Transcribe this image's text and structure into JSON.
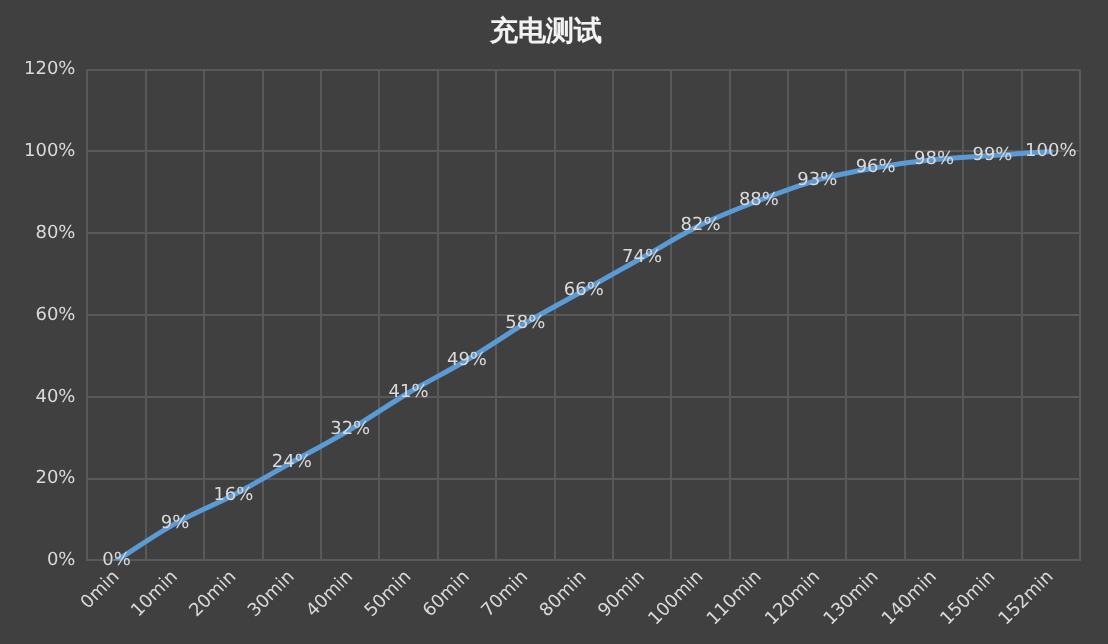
{
  "chart_data": {
    "type": "line",
    "title": "充电测试",
    "categories": [
      "0min",
      "10min",
      "20min",
      "30min",
      "40min",
      "50min",
      "60min",
      "70min",
      "80min",
      "90min",
      "100min",
      "110min",
      "120min",
      "130min",
      "140min",
      "150min",
      "152min"
    ],
    "series": [
      {
        "color": "#5b9bd5",
        "values": [
          0,
          9,
          16,
          24,
          32,
          41,
          49,
          58,
          66,
          74,
          82,
          88,
          93,
          96,
          98,
          99,
          100
        ],
        "value_labels": [
          "0%",
          "9%",
          "16%",
          "24%",
          "32%",
          "41%",
          "49%",
          "58%",
          "66%",
          "74%",
          "82%",
          "88%",
          "93%",
          "96%",
          "98%",
          "99%",
          "100%"
        ]
      }
    ],
    "ylim": [
      0,
      120
    ],
    "yticks": [
      {
        "value": 0,
        "label": "0%"
      },
      {
        "value": 20,
        "label": "20%"
      },
      {
        "value": 40,
        "label": "40%"
      },
      {
        "value": 60,
        "label": "60%"
      },
      {
        "value": 80,
        "label": "80%"
      },
      {
        "value": 100,
        "label": "100%"
      },
      {
        "value": 120,
        "label": "120%"
      }
    ],
    "grid": true,
    "legend": false,
    "marker": "none",
    "line_style": "solid"
  }
}
